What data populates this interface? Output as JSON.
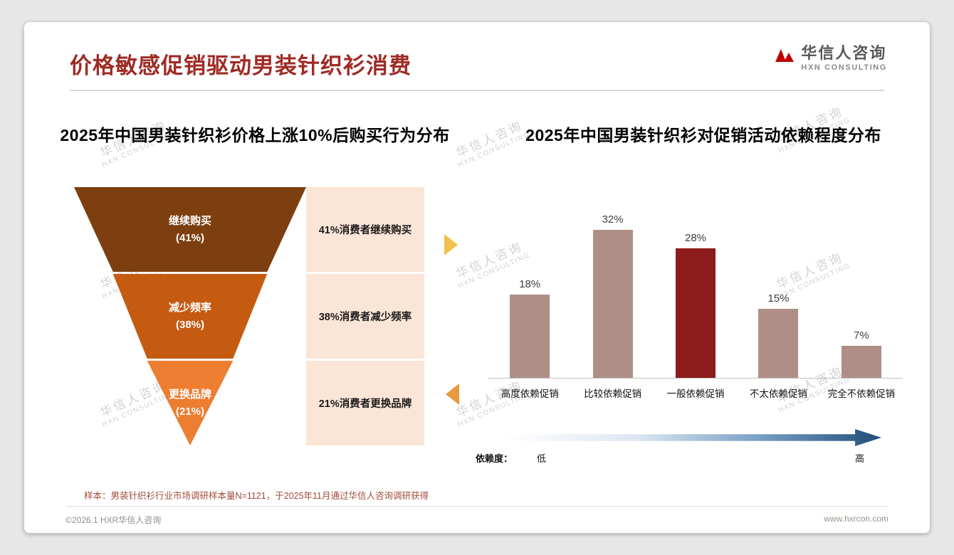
{
  "page": {
    "title": "价格敏感促销驱动男装针织衫消费",
    "logo": {
      "name": "华信人咨询",
      "subtitle": "HXN CONSULTING"
    },
    "note": "样本：男装针织衫行业市场调研样本量N=1121，于2025年11月通过华信人咨询调研获得",
    "footer": {
      "left": "©2026.1 HXR华信人咨询",
      "right": "www.hxrcon.com"
    },
    "watermark": {
      "line1": "华信人咨询",
      "line2": "HXN CONSULTING"
    }
  },
  "colors": {
    "title_red": "#9E2B25",
    "bar_default": "#AE8E86",
    "bar_highlight": "#8E1B1B",
    "arrow_yellow": "#F0C14B",
    "arrow_orange": "#E79A3C",
    "label_bg": "#FBE5D6",
    "logo_red": "#C00000"
  },
  "chart_data": [
    {
      "type": "funnel",
      "title": "2025年中国男装针织衫价格上涨10%后购买行为分布",
      "categories": [
        "继续购买",
        "减少频率",
        "更换品牌"
      ],
      "values": [
        41,
        38,
        21
      ],
      "value_labels": [
        "(41%)",
        "(38%)",
        "(21%)"
      ],
      "labels": [
        "41%消费者继续购买",
        "38%消费者减少频率",
        "21%消费者更换品牌"
      ],
      "colors": [
        "#7E3F10",
        "#C55A11",
        "#ED7D31"
      ]
    },
    {
      "type": "bar",
      "title": "2025年中国男装针织衫对促销活动依赖程度分布",
      "categories": [
        "高度依赖促销",
        "比较依赖促销",
        "一般依赖促销",
        "不太依赖促销",
        "完全不依赖促销"
      ],
      "values": [
        18,
        32,
        28,
        15,
        7
      ],
      "value_labels": [
        "18%",
        "32%",
        "28%",
        "15%",
        "7%"
      ],
      "highlight_index": 2,
      "ylim": [
        0,
        35
      ],
      "grid": false,
      "legend": "none",
      "dependency_axis": {
        "label": "依赖度：",
        "low": "低",
        "high": "高"
      }
    }
  ]
}
